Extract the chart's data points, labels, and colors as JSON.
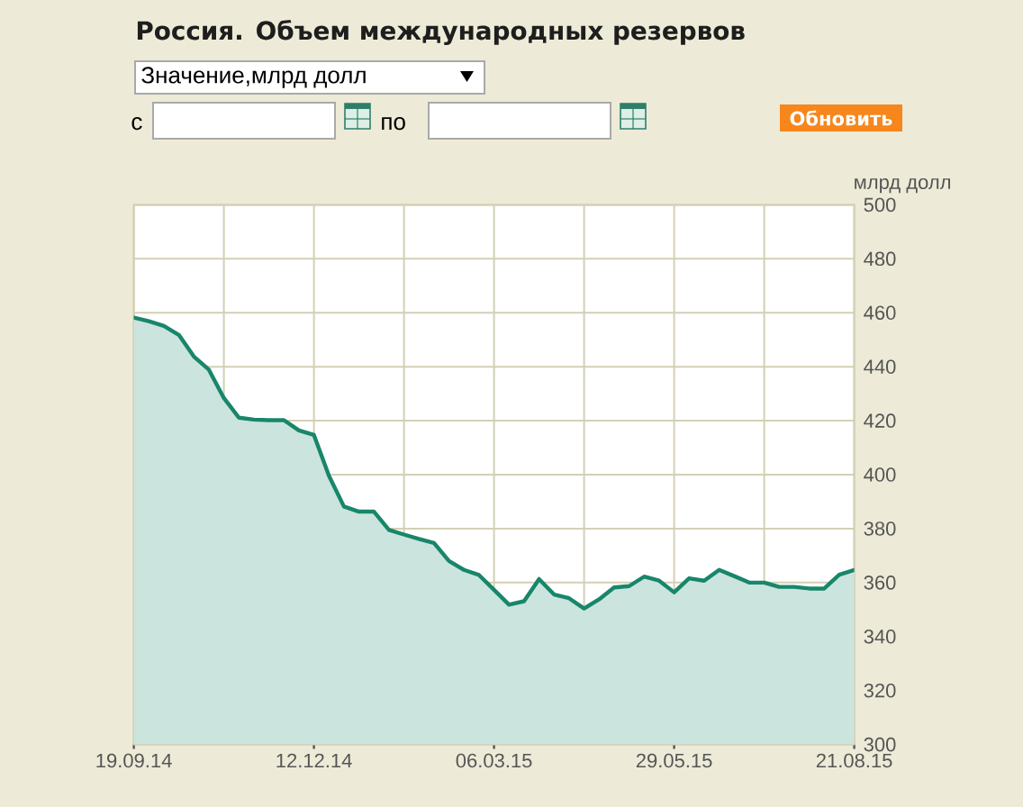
{
  "chart_data": {
    "type": "area",
    "title": "Россия. Объем международных резервов",
    "ylabel": "млрд долл",
    "annotations": [
      "Значение,млрд долл",
      "с",
      "по",
      "Обновить"
    ],
    "x": [
      "2014-09-19",
      "2014-09-26",
      "2014-10-03",
      "2014-10-10",
      "2014-10-17",
      "2014-10-24",
      "2014-10-31",
      "2014-11-07",
      "2014-11-14",
      "2014-11-21",
      "2014-11-28",
      "2014-12-05",
      "2014-12-12",
      "2014-12-19",
      "2014-12-26",
      "2015-01-02",
      "2015-01-09",
      "2015-01-16",
      "2015-01-23",
      "2015-01-30",
      "2015-02-06",
      "2015-02-13",
      "2015-02-20",
      "2015-02-27",
      "2015-03-06",
      "2015-03-13",
      "2015-03-20",
      "2015-03-27",
      "2015-04-03",
      "2015-04-10",
      "2015-04-17",
      "2015-04-24",
      "2015-05-01",
      "2015-05-08",
      "2015-05-15",
      "2015-05-22",
      "2015-05-29",
      "2015-06-05",
      "2015-06-12",
      "2015-06-19",
      "2015-06-26",
      "2015-07-03",
      "2015-07-10",
      "2015-07-17",
      "2015-07-24",
      "2015-07-31",
      "2015-08-07",
      "2015-08-14",
      "2015-08-21"
    ],
    "series": [
      {
        "color": "#18866a",
        "values": [
          458.2,
          456.9,
          455.1,
          451.8,
          443.8,
          438.9,
          428.4,
          421.1,
          420.4,
          420.2,
          420.2,
          416.4,
          414.7,
          399.6,
          388.2,
          386.3,
          386.3,
          379.5,
          377.8,
          376.2,
          374.7,
          368.0,
          364.7,
          362.8,
          357.3,
          351.8,
          353.1,
          361.3,
          355.6,
          354.2,
          350.4,
          353.8,
          358.2,
          358.7,
          362.2,
          360.7,
          356.4,
          361.6,
          360.7,
          364.7,
          362.4,
          360.0,
          360.0,
          358.4,
          358.4,
          357.8,
          357.8,
          362.9,
          364.7
        ]
      }
    ],
    "xlim": [
      "2014-09-19",
      "2015-08-21"
    ],
    "xticks": [
      {
        "value": "2014-09-19",
        "label": "19.09.14"
      },
      {
        "value": "2014-10-31",
        "label": null
      },
      {
        "value": "2014-12-12",
        "label": "12.12.14"
      },
      {
        "value": "2015-01-23",
        "label": null
      },
      {
        "value": "2015-03-06",
        "label": "06.03.15"
      },
      {
        "value": "2015-04-17",
        "label": null
      },
      {
        "value": "2015-05-29",
        "label": "29.05.15"
      },
      {
        "value": "2015-07-10",
        "label": null
      },
      {
        "value": "2015-08-21",
        "label": "21.08.15"
      }
    ],
    "ylim": [
      300,
      500
    ],
    "yticks": [
      300,
      320,
      340,
      360,
      380,
      400,
      420,
      440,
      460,
      480,
      500
    ],
    "grid": true
  }
}
